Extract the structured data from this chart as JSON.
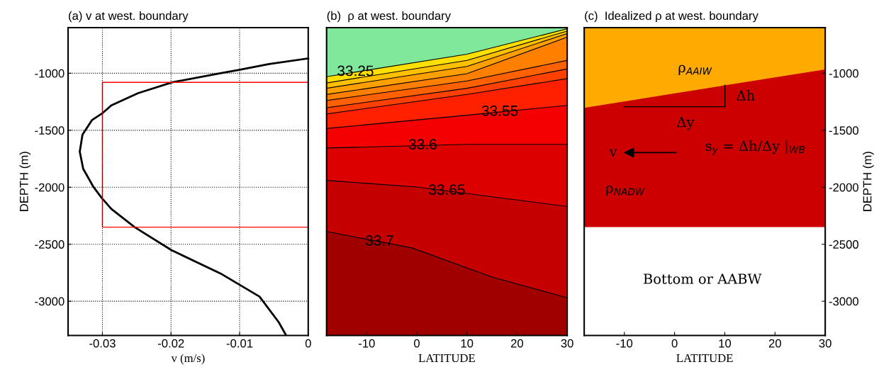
{
  "chart_data": [
    {
      "type": "line",
      "title": "(a) v at west. boundary",
      "xlabel": "v (m/s)",
      "ylabel": "DEPTH (m)",
      "xlim": [
        -0.035,
        0
      ],
      "xticks": [
        -0.03,
        -0.02,
        -0.01,
        0
      ],
      "ylim": [
        -3300,
        -600
      ],
      "yticks": [
        -3000,
        -2500,
        -2000,
        -1500,
        -1000
      ],
      "grid": true,
      "series": [
        {
          "color": "#000000",
          "x": [
            0,
            -0.0057,
            -0.0098,
            -0.0128,
            -0.0198,
            -0.0248,
            -0.0287,
            -0.0299,
            -0.0315,
            -0.0329,
            -0.0333,
            -0.0328,
            -0.0313,
            -0.0301,
            -0.0287,
            -0.0253,
            -0.0199,
            -0.0128,
            -0.0071,
            -0.0043,
            -0.0033
          ],
          "values": [
            -870,
            -919,
            -968,
            -1000,
            -1079,
            -1175,
            -1282,
            -1346,
            -1410,
            -1538,
            -1688,
            -1838,
            -1998,
            -2094,
            -2190,
            -2350,
            -2553,
            -2756,
            -2959,
            -3184,
            -3291
          ]
        },
        {
          "color": "#ff0000",
          "x": [
            0,
            -0.03,
            -0.03,
            0
          ],
          "values": [
            -1080,
            -1080,
            -2350,
            -2350
          ]
        }
      ]
    },
    {
      "type": "line",
      "title": "(b)  ρ at west. boundary",
      "xlabel": "LATITUDE",
      "xlim": [
        -18,
        30
      ],
      "xticks": [
        -10,
        0,
        10,
        20,
        30
      ],
      "ylim": [
        -3300,
        -600
      ],
      "tick_labels": "x",
      "series": [
        {
          "type": "area",
          "name": "33.25",
          "color": "#7fe89a",
          "x": [
            -18,
            10,
            30
          ],
          "values": [
            -1030,
            -833,
            -610
          ]
        },
        {
          "type": "area",
          "color": "#ffe000",
          "x": [
            -18,
            10,
            30
          ],
          "values": [
            -1085,
            -887,
            -630
          ]
        },
        {
          "type": "area",
          "color": "#ffc000",
          "x": [
            -18,
            10,
            30
          ],
          "values": [
            -1132,
            -940,
            -652
          ]
        },
        {
          "type": "area",
          "color": "#ffa000",
          "x": [
            -18,
            10,
            30
          ],
          "values": [
            -1186,
            -1004,
            -684
          ]
        },
        {
          "type": "area",
          "color": "#ff8000",
          "x": [
            -18,
            10,
            30
          ],
          "values": [
            -1239,
            -1068,
            -887
          ]
        },
        {
          "type": "area",
          "color": "#ff6000",
          "x": [
            -18,
            10,
            30
          ],
          "values": [
            -1303,
            -1132,
            -962
          ]
        },
        {
          "type": "area",
          "color": "#ff4000",
          "x": [
            -18,
            10,
            30
          ],
          "values": [
            -1357,
            -1186,
            -1047
          ]
        },
        {
          "type": "area",
          "name": "33.55",
          "color": "#ff2000",
          "x": [
            -18,
            10,
            30
          ],
          "values": [
            -1485,
            -1368,
            -1282
          ]
        },
        {
          "type": "area",
          "name": "33.6",
          "color": "#f40000",
          "x": [
            -18,
            10,
            30
          ],
          "values": [
            -1656,
            -1624,
            -1624
          ]
        },
        {
          "type": "area",
          "name": "33.65",
          "color": "#dc0000",
          "x": [
            -18,
            0,
            30
          ],
          "values": [
            -1940,
            -1998,
            -2169
          ]
        },
        {
          "type": "area",
          "name": "33.7",
          "color": "#c40000",
          "x": [
            -18,
            -1,
            15,
            30
          ],
          "values": [
            -2389,
            -2532,
            -2788,
            -2970
          ]
        }
      ],
      "bands": [
        {
          "axis": "y",
          "from": -3300,
          "to": -2389,
          "color": "#a00000"
        }
      ]
    },
    {
      "type": "area",
      "title": "(c)  Idealized ρ at west. boundary",
      "xlabel": "LATITUDE",
      "ylabel": "DEPTH (m)",
      "xlim": [
        -18,
        30
      ],
      "xticks": [
        -10,
        0,
        10,
        20,
        30
      ],
      "ylim": [
        -3300,
        -600
      ],
      "yticks": [
        -3000,
        -2500,
        -2000,
        -1500,
        -1000
      ],
      "series": [
        {
          "color": "#ffaa00",
          "x": [
            -18,
            30
          ],
          "values": [
            -1303,
            -966
          ]
        },
        {
          "color": "#cc0000",
          "x": [
            -18,
            30
          ],
          "values": [
            -2350,
            -2350
          ]
        }
      ],
      "annotations": [
        "ρ$_{AAIW}$",
        "Δh",
        "Δy",
        "s$_{y}$ = Δh/Δy |$_{WB}$",
        "v",
        "ρ$_{NADW}$",
        "Bottom or AABW"
      ]
    }
  ]
}
